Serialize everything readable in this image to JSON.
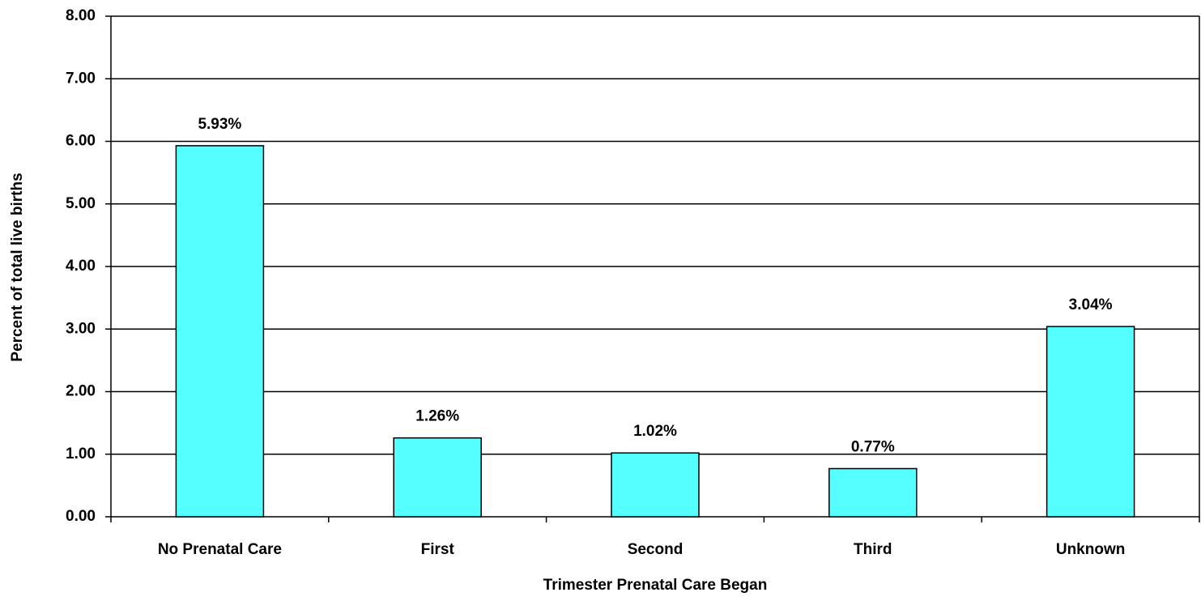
{
  "chart_data": {
    "type": "bar",
    "x_label": "Trimester Prenatal Care Began",
    "y_label": "Percent of total live births",
    "categories": [
      "No Prenatal Care",
      "First",
      "Second",
      "Third",
      "Unknown"
    ],
    "values": [
      5.93,
      1.26,
      1.02,
      0.77,
      3.04
    ],
    "value_labels": [
      "5.93%",
      "1.26%",
      "1.02%",
      "0.77%",
      "3.04%"
    ],
    "color": "#55ffff",
    "ylim": [
      0,
      8
    ],
    "yticks": [
      {
        "value": 0,
        "label": "0.00"
      },
      {
        "value": 1,
        "label": "1.00"
      },
      {
        "value": 2,
        "label": "2.00"
      },
      {
        "value": 3,
        "label": "3.00"
      },
      {
        "value": 4,
        "label": "4.00"
      },
      {
        "value": 5,
        "label": "5.00"
      },
      {
        "value": 6,
        "label": "6.00"
      },
      {
        "value": 7,
        "label": "7.00"
      },
      {
        "value": 8,
        "label": "8.00"
      }
    ],
    "grid": true
  }
}
